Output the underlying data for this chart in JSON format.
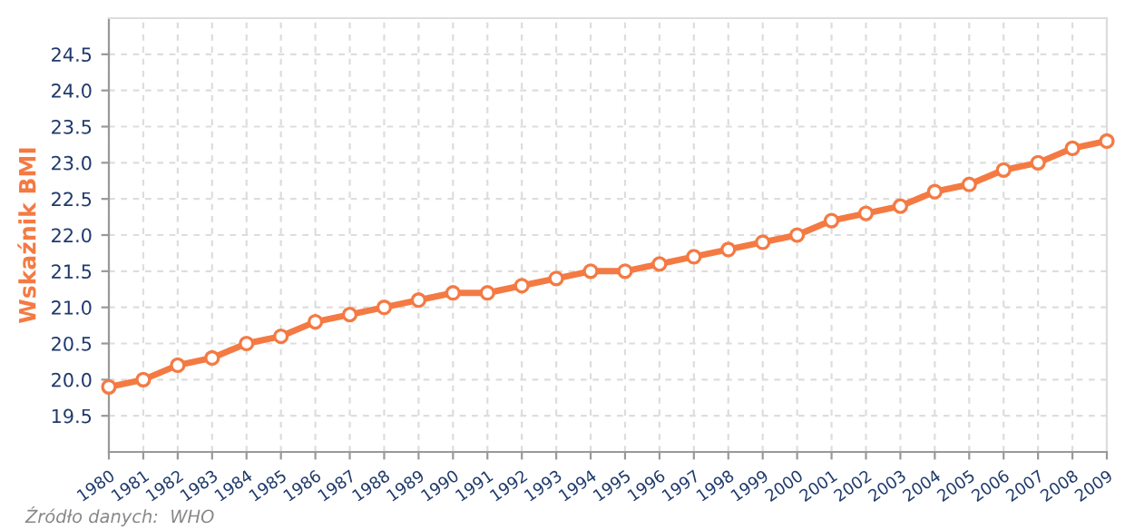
{
  "chart_data": {
    "type": "line",
    "ylabel": "Wskaźnik BMI",
    "categories": [
      "1980",
      "1981",
      "1982",
      "1983",
      "1984",
      "1985",
      "1986",
      "1987",
      "1988",
      "1989",
      "1990",
      "1991",
      "1992",
      "1993",
      "1994",
      "1995",
      "1996",
      "1997",
      "1998",
      "1999",
      "2000",
      "2001",
      "2002",
      "2003",
      "2004",
      "2005",
      "2006",
      "2007",
      "2008",
      "2009"
    ],
    "series": [
      {
        "color": "#f47a43",
        "values": [
          19.9,
          20.0,
          20.2,
          20.3,
          20.5,
          20.6,
          20.8,
          20.9,
          21.0,
          21.1,
          21.2,
          21.2,
          21.3,
          21.4,
          21.5,
          21.5,
          21.6,
          21.7,
          21.8,
          21.9,
          22.0,
          22.2,
          22.3,
          22.4,
          22.6,
          22.7,
          22.9,
          23.0,
          23.2,
          23.3
        ]
      }
    ],
    "ylim": [
      19,
      25
    ],
    "yticks": [
      19.5,
      {
        "value": 20,
        "label": "20.0"
      },
      20.5,
      {
        "value": 21,
        "label": "21.0"
      },
      21.5,
      {
        "value": 22,
        "label": "22.0"
      },
      22.5,
      {
        "value": 23,
        "label": "23.0"
      },
      23.5,
      {
        "value": 24,
        "label": "24.0"
      },
      24.5
    ],
    "grid": true,
    "marker": "circle",
    "line_style": "solid",
    "annotations": [
      "Źródło danych:  WHO"
    ]
  }
}
